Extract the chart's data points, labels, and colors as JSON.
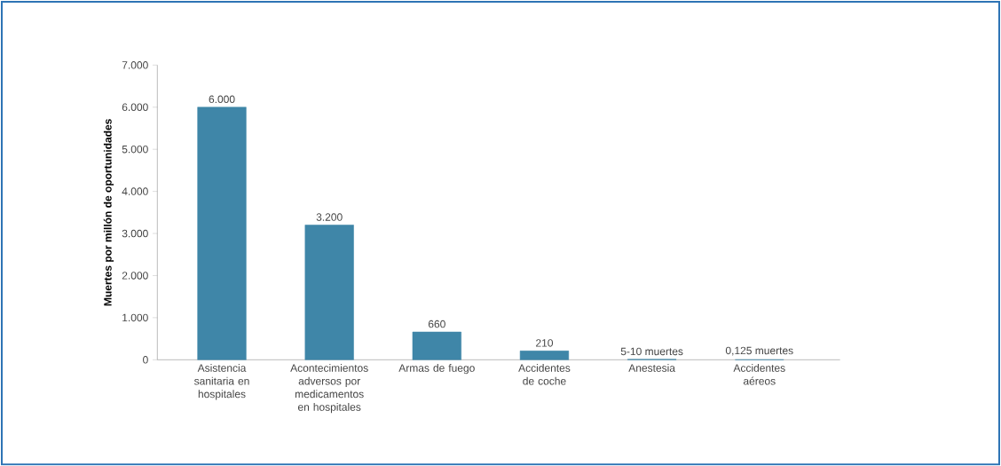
{
  "chart_data": {
    "type": "bar",
    "ylabel": "Muertes por millón de oportunidades",
    "categories": [
      "Asistencia sanitaria en hospitales",
      "Acontecimientos adversos por medicamentos en hospitales",
      "Armas de fuego",
      "Accidentes de coche",
      "Anestesia",
      "Accidentes aéreos"
    ],
    "values": [
      6000,
      3200,
      660,
      210,
      10,
      0.125
    ],
    "value_labels": [
      "6.000",
      "3.200",
      "660",
      "210",
      "5-10 muertes",
      "0,125 muertes"
    ],
    "color": "#3f86a8",
    "ylim": [
      0,
      7000
    ],
    "yticks": [
      0,
      {
        "value": 1000,
        "label": "1.000"
      },
      {
        "value": 2000,
        "label": "2.000"
      },
      {
        "value": 3000,
        "label": "3.000"
      },
      {
        "value": 4000,
        "label": "4.000"
      },
      {
        "value": 5000,
        "label": "5.000"
      },
      {
        "value": 6000,
        "label": "6.000"
      },
      {
        "value": 7000,
        "label": "7.000"
      }
    ],
    "grid": false
  }
}
